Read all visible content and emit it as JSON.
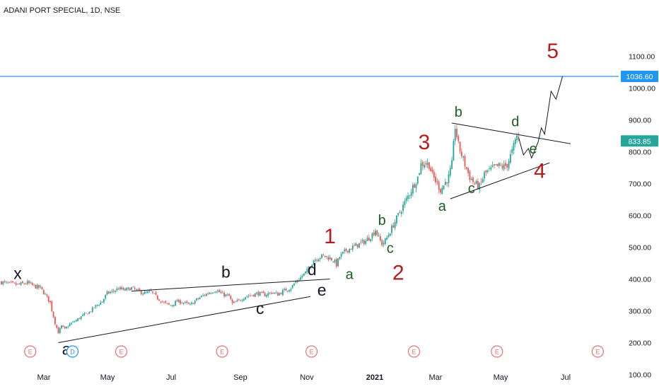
{
  "header": {
    "title": "ADANI PORT SPECIAL, 1D, NSE"
  },
  "colors": {
    "up": "#26a69a",
    "down": "#ef5350",
    "wave_red": "#b71c1c",
    "wave_green": "#1b5e20",
    "hline": "#2196f3",
    "text": "#131722",
    "event": "#e57373",
    "dividend": "#2196f3"
  },
  "chart_data": {
    "type": "candlestick",
    "symbol": "ADANI PORT SPECIAL",
    "interval": "1D",
    "exchange": "NSE",
    "y_axis": {
      "ticks": [
        "100.00",
        "200.00",
        "300.00",
        "400.00",
        "500.00",
        "600.00",
        "700.00",
        "800.00",
        "900.00",
        "1000.00",
        "1100.00"
      ],
      "range": [
        80,
        1140
      ]
    },
    "x_axis": {
      "ticks": [
        "Mar",
        "May",
        "Jul",
        "Sep",
        "Nov",
        "2021",
        "Mar",
        "May",
        "Jul"
      ]
    },
    "horizontal_line": {
      "value": 1036.6,
      "label": "1036.60"
    },
    "last_price": {
      "value": 833.85,
      "label": "833.85"
    },
    "path": [
      [
        0,
        390
      ],
      [
        5,
        385
      ],
      [
        10,
        382
      ],
      [
        16,
        388
      ],
      [
        21,
        376
      ],
      [
        24,
        372
      ],
      [
        27,
        350
      ],
      [
        30,
        326
      ],
      [
        31,
        302
      ],
      [
        33,
        262
      ],
      [
        35,
        232
      ],
      [
        37,
        252
      ],
      [
        39,
        242
      ],
      [
        42,
        258
      ],
      [
        46,
        270
      ],
      [
        50,
        285
      ],
      [
        54,
        296
      ],
      [
        58,
        315
      ],
      [
        62,
        330
      ],
      [
        65,
        355
      ],
      [
        68,
        360
      ],
      [
        72,
        370
      ],
      [
        76,
        365
      ],
      [
        80,
        372
      ],
      [
        84,
        362
      ],
      [
        88,
        355
      ],
      [
        92,
        360
      ],
      [
        96,
        340
      ],
      [
        100,
        325
      ],
      [
        104,
        316
      ],
      [
        108,
        330
      ],
      [
        112,
        326
      ],
      [
        116,
        318
      ],
      [
        120,
        335
      ],
      [
        124,
        348
      ],
      [
        128,
        358
      ],
      [
        132,
        365
      ],
      [
        136,
        352
      ],
      [
        140,
        346
      ],
      [
        142,
        322
      ],
      [
        146,
        332
      ],
      [
        150,
        345
      ],
      [
        154,
        350
      ],
      [
        158,
        355
      ],
      [
        162,
        350
      ],
      [
        166,
        358
      ],
      [
        170,
        352
      ],
      [
        174,
        364
      ],
      [
        178,
        372
      ],
      [
        180,
        385
      ],
      [
        184,
        405
      ],
      [
        188,
        425
      ],
      [
        192,
        460
      ],
      [
        196,
        470
      ],
      [
        198,
        472
      ],
      [
        200,
        470
      ],
      [
        204,
        460
      ],
      [
        206,
        445
      ],
      [
        208,
        470
      ],
      [
        212,
        490
      ],
      [
        216,
        500
      ],
      [
        220,
        510
      ],
      [
        224,
        520
      ],
      [
        228,
        540
      ],
      [
        230,
        555
      ],
      [
        232,
        530
      ],
      [
        234,
        510
      ],
      [
        236,
        520
      ],
      [
        240,
        560
      ],
      [
        244,
        600
      ],
      [
        248,
        640
      ],
      [
        252,
        680
      ],
      [
        256,
        720
      ],
      [
        258,
        760
      ],
      [
        260,
        765
      ],
      [
        263,
        760
      ],
      [
        265,
        725
      ],
      [
        268,
        700
      ],
      [
        270,
        680
      ],
      [
        272,
        695
      ],
      [
        275,
        720
      ],
      [
        277,
        760
      ],
      [
        279,
        880
      ],
      [
        281,
        820
      ],
      [
        283,
        790
      ],
      [
        285,
        760
      ],
      [
        288,
        720
      ],
      [
        291,
        700
      ],
      [
        294,
        690
      ],
      [
        297,
        730
      ],
      [
        300,
        740
      ],
      [
        303,
        750
      ],
      [
        306,
        755
      ],
      [
        309,
        752
      ],
      [
        311,
        760
      ],
      [
        314,
        800
      ],
      [
        317,
        850
      ],
      [
        318,
        845
      ]
    ],
    "projection": [
      [
        318,
        845
      ],
      [
        321,
        790
      ],
      [
        324,
        810
      ],
      [
        326,
        780
      ],
      [
        330,
        830
      ],
      [
        332,
        875
      ],
      [
        334,
        855
      ],
      [
        338,
        990
      ],
      [
        341,
        965
      ],
      [
        345,
        1036
      ]
    ],
    "trendlines": [
      {
        "from": [
          35,
          200
        ],
        "to": [
          190,
          345
        ]
      },
      {
        "from": [
          80,
          362
        ],
        "to": [
          202,
          400
        ]
      },
      {
        "from": [
          276,
          652
        ],
        "to": [
          337,
          765
        ]
      },
      {
        "from": [
          277,
          890
        ],
        "to": [
          350,
          825
        ]
      }
    ],
    "wave_labels": [
      {
        "text": "x",
        "t": 10,
        "v": 400,
        "color": "black",
        "size": 23
      },
      {
        "text": "a",
        "t": 40,
        "v": 162,
        "color": "black",
        "size": 23
      },
      {
        "text": "b",
        "t": 138,
        "v": 405,
        "color": "black",
        "size": 23
      },
      {
        "text": "c",
        "t": 159,
        "v": 290,
        "color": "black",
        "size": 23
      },
      {
        "text": "d",
        "t": 191,
        "v": 412,
        "color": "black",
        "size": 23
      },
      {
        "text": "e",
        "t": 197,
        "v": 348,
        "color": "black",
        "size": 23
      },
      {
        "text": "1",
        "t": 202,
        "v": 512,
        "color": "red",
        "size": 30
      },
      {
        "text": "a",
        "t": 214,
        "v": 400,
        "color": "green",
        "size": 20
      },
      {
        "text": "b",
        "t": 234,
        "v": 570,
        "color": "green",
        "size": 20
      },
      {
        "text": "c",
        "t": 239,
        "v": 482,
        "color": "green",
        "size": 20
      },
      {
        "text": "2",
        "t": 244,
        "v": 398,
        "color": "red",
        "size": 30
      },
      {
        "text": "3",
        "t": 260,
        "v": 808,
        "color": "red",
        "size": 30
      },
      {
        "text": "a",
        "t": 271,
        "v": 615,
        "color": "green",
        "size": 20
      },
      {
        "text": "b",
        "t": 281,
        "v": 910,
        "color": "green",
        "size": 20
      },
      {
        "text": "c",
        "t": 289,
        "v": 670,
        "color": "green",
        "size": 20
      },
      {
        "text": "d",
        "t": 316,
        "v": 880,
        "color": "green",
        "size": 20
      },
      {
        "text": "e",
        "t": 327,
        "v": 795,
        "color": "green",
        "size": 20
      },
      {
        "text": "4",
        "t": 331,
        "v": 718,
        "color": "red",
        "size": 30
      },
      {
        "text": "5",
        "t": 339,
        "v": 1095,
        "color": "red",
        "size": 30
      }
    ],
    "events": [
      {
        "text": "E",
        "t": 9,
        "kind": "earnings"
      },
      {
        "text": "D",
        "t": 35,
        "kind": "dividend"
      },
      {
        "text": "E",
        "t": 65,
        "kind": "earnings"
      },
      {
        "text": "E",
        "t": 127,
        "kind": "earnings"
      },
      {
        "text": "E",
        "t": 182,
        "kind": "earnings"
      },
      {
        "text": "E",
        "t": 245,
        "kind": "earnings"
      },
      {
        "text": "E",
        "t": 296,
        "kind": "earnings"
      },
      {
        "text": "E",
        "t": 358,
        "kind": "earnings"
      }
    ]
  }
}
